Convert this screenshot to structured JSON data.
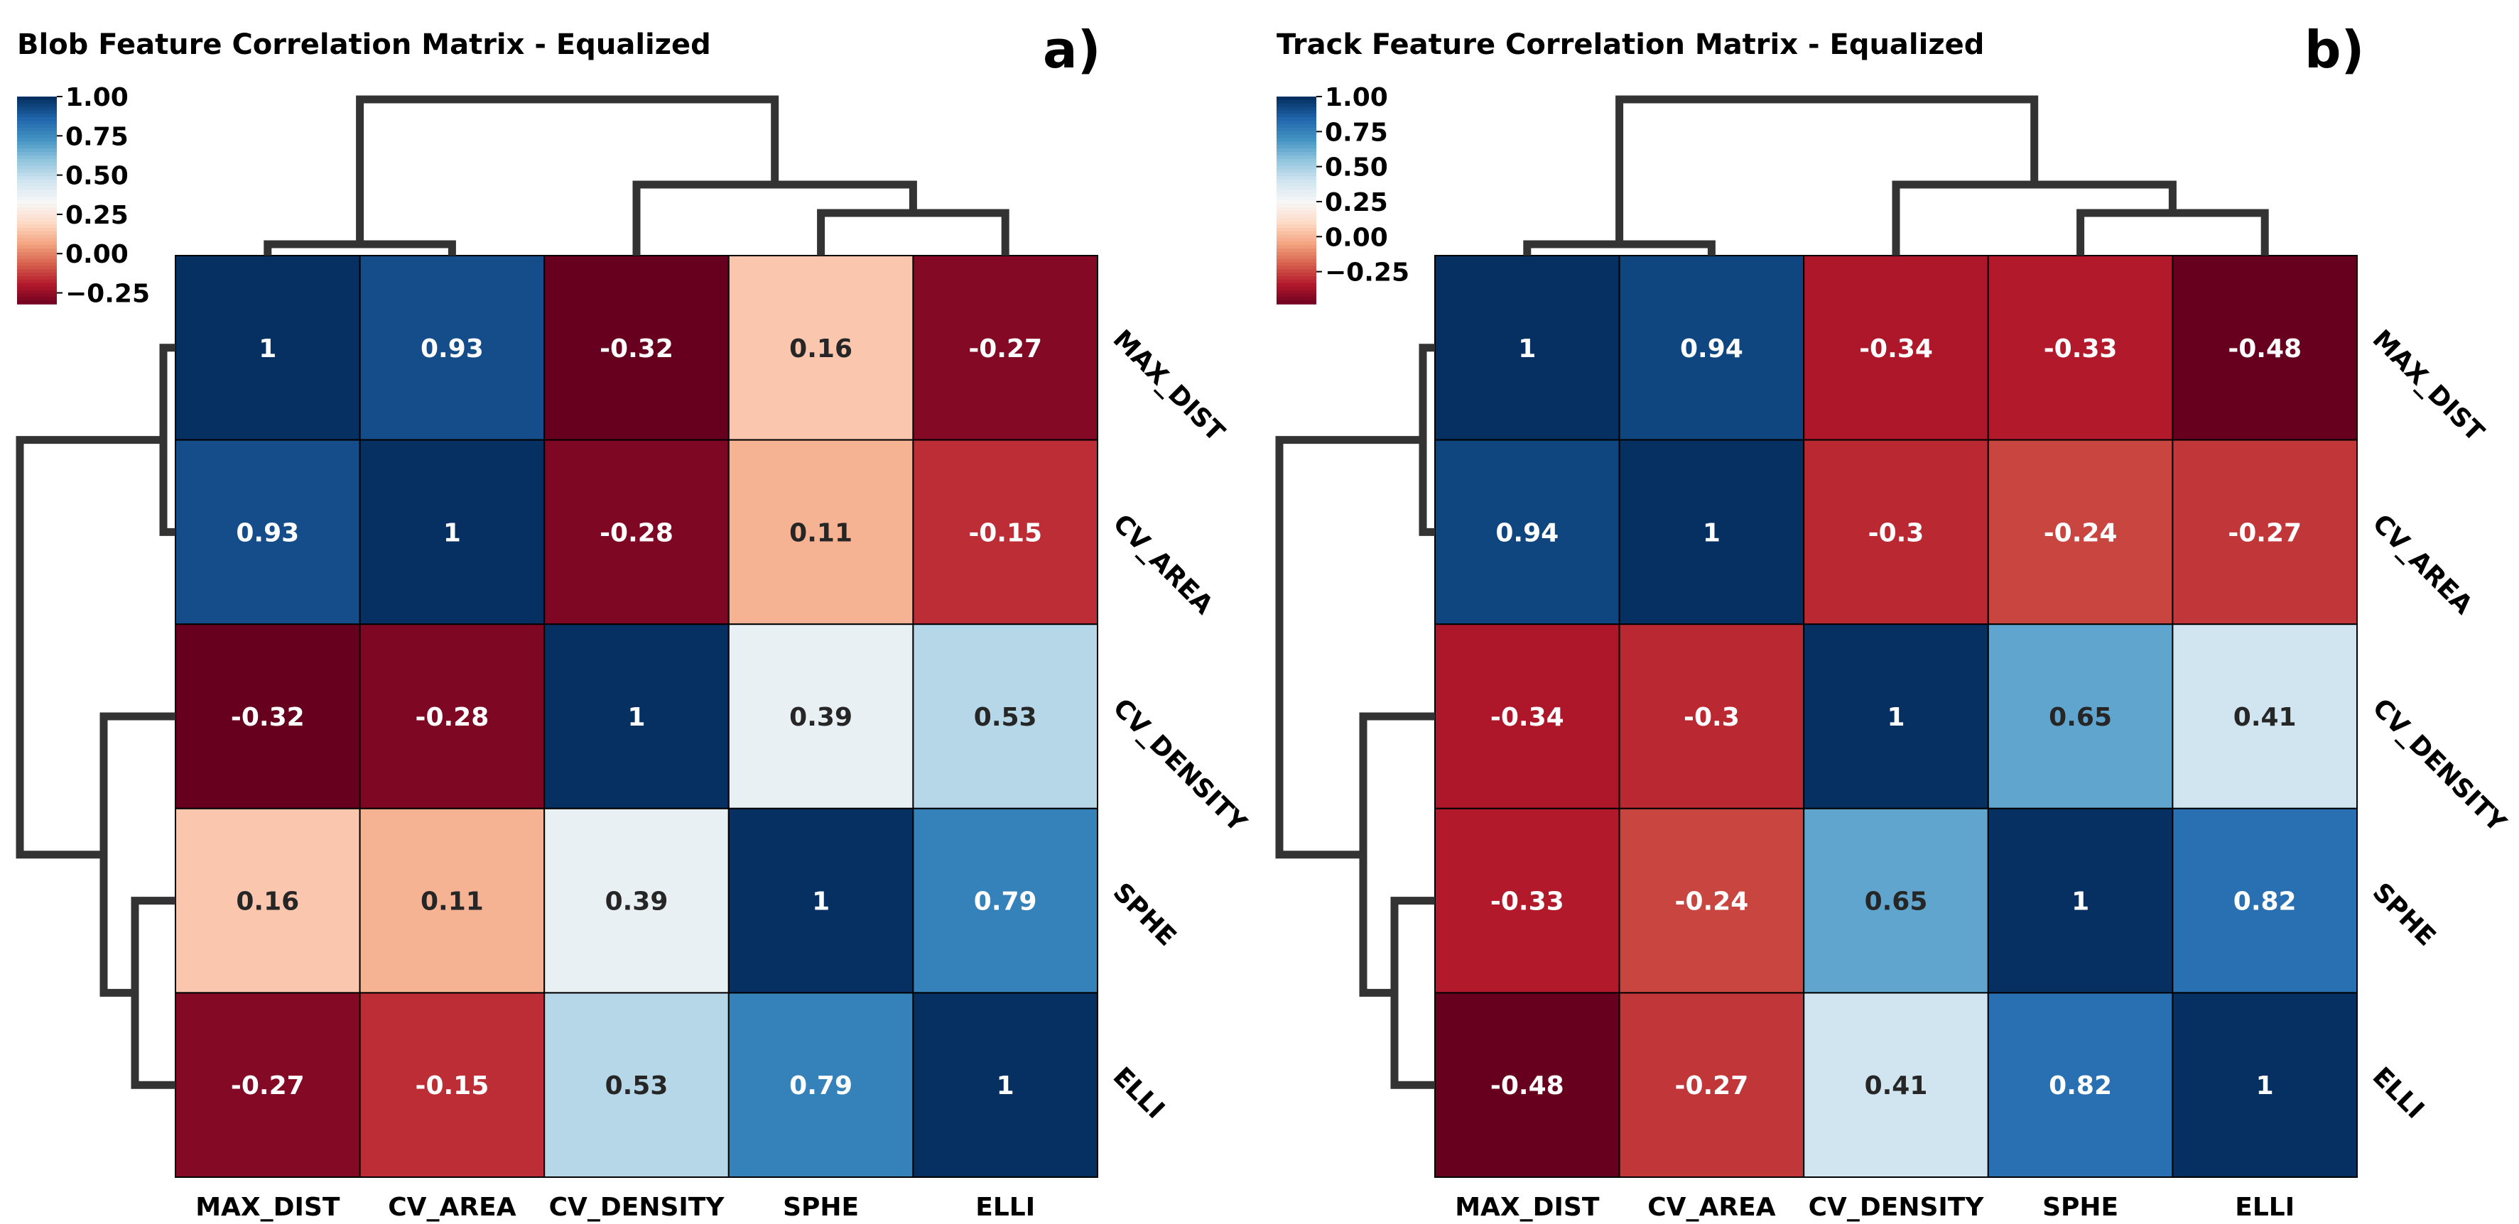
{
  "chart_data": [
    {
      "type": "heatmap",
      "title": "Blob Feature Correlation Matrix - Equalized",
      "panel_label": "a)",
      "rows": [
        "MAX_DIST",
        "CV_AREA",
        "CV_DENSITY",
        "SPHE",
        "ELLI"
      ],
      "columns": [
        "MAX_DIST",
        "CV_AREA",
        "CV_DENSITY",
        "SPHE",
        "ELLI"
      ],
      "values": [
        [
          1,
          0.93,
          -0.32,
          0.16,
          -0.27
        ],
        [
          0.93,
          1,
          -0.28,
          0.11,
          -0.15
        ],
        [
          -0.32,
          -0.28,
          1,
          0.39,
          0.53
        ],
        [
          0.16,
          0.11,
          0.39,
          1,
          0.79
        ],
        [
          -0.27,
          -0.15,
          0.53,
          0.79,
          1
        ]
      ],
      "annotations": [
        [
          "1",
          "0.93",
          "-0.32",
          "0.16",
          "-0.27"
        ],
        [
          "0.93",
          "1",
          "-0.28",
          "0.11",
          "-0.15"
        ],
        [
          "-0.32",
          "-0.28",
          "1",
          "0.39",
          "0.53"
        ],
        [
          "0.16",
          "0.11",
          "0.39",
          "1",
          "0.79"
        ],
        [
          "-0.27",
          "-0.15",
          "0.53",
          "0.79",
          "1"
        ]
      ],
      "colorbar": {
        "ticks": [
          "1.00",
          "0.75",
          "0.50",
          "0.25",
          "0.00",
          "−0.25"
        ],
        "range": [
          -0.32,
          1.0
        ],
        "colormap": "RdBu"
      }
    },
    {
      "type": "heatmap",
      "title": "Track Feature Correlation Matrix - Equalized",
      "panel_label": "b)",
      "rows": [
        "MAX_DIST",
        "CV_AREA",
        "CV_DENSITY",
        "SPHE",
        "ELLI"
      ],
      "columns": [
        "MAX_DIST",
        "CV_AREA",
        "CV_DENSITY",
        "SPHE",
        "ELLI"
      ],
      "values": [
        [
          1,
          0.94,
          -0.34,
          -0.33,
          -0.48
        ],
        [
          0.94,
          1,
          -0.3,
          -0.24,
          -0.27
        ],
        [
          -0.34,
          -0.3,
          1,
          0.65,
          0.41
        ],
        [
          -0.33,
          -0.24,
          0.65,
          1,
          0.82
        ],
        [
          -0.48,
          -0.27,
          0.41,
          0.82,
          1
        ]
      ],
      "annotations": [
        [
          "1",
          "0.94",
          "-0.34",
          "-0.33",
          "-0.48"
        ],
        [
          "0.94",
          "1",
          "-0.3",
          "-0.24",
          "-0.27"
        ],
        [
          "-0.34",
          "-0.3",
          "1",
          "0.65",
          "0.41"
        ],
        [
          "-0.33",
          "-0.24",
          "0.65",
          "1",
          "0.82"
        ],
        [
          "-0.48",
          "-0.27",
          "0.41",
          "0.82",
          "1"
        ]
      ],
      "colorbar": {
        "ticks": [
          "1.00",
          "0.75",
          "0.50",
          "0.25",
          "0.00",
          "−0.25"
        ],
        "range": [
          -0.48,
          1.0
        ],
        "colormap": "RdBu"
      }
    }
  ]
}
